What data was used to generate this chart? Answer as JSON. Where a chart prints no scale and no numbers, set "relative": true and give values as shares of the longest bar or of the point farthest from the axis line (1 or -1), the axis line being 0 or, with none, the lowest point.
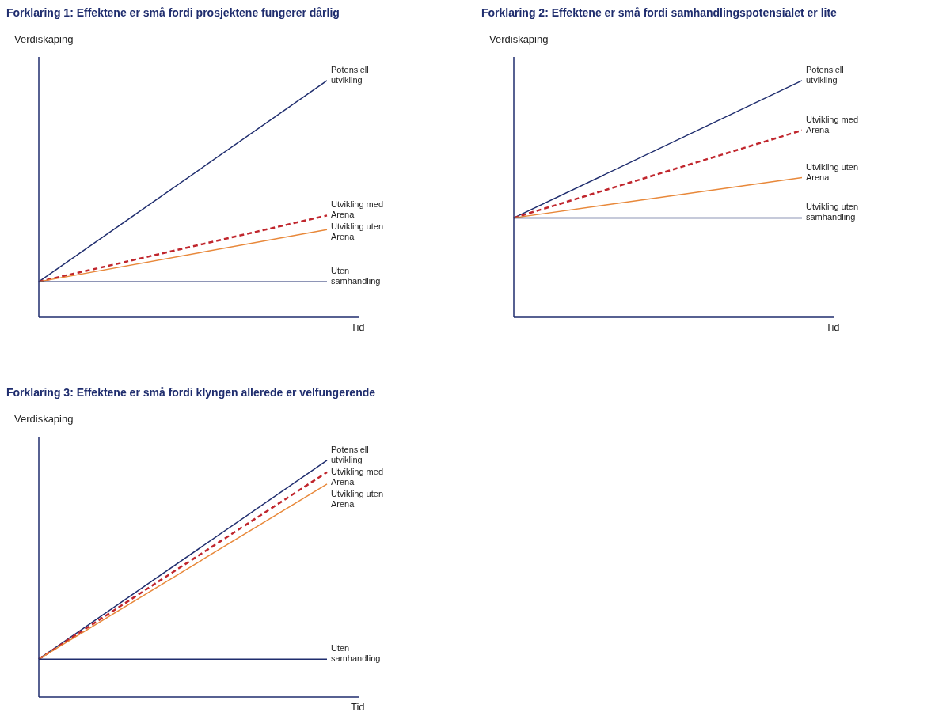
{
  "chart_data": [
    {
      "type": "line",
      "title": "Forklaring 1: Effektene er små fordi prosjektene fungerer dårlig",
      "xlabel": "Tid",
      "ylabel": "Verdiskaping",
      "relative": true,
      "categories": [
        null,
        null
      ],
      "series": [
        {
          "name": "Potensiell utvikling",
          "color": "#1f2d6e",
          "values": [
            0.15,
            1
          ]
        },
        {
          "name": "Utvikling med Arena",
          "color": "#c0262d",
          "values": [
            0.15,
            0.43
          ],
          "line_style": "dashed"
        },
        {
          "name": "Utvikling uten Arena",
          "color": "#e8883a",
          "values": [
            0.15,
            0.37
          ]
        },
        {
          "name": "Uten samhandling",
          "color": "#1f2d6e",
          "values": [
            0.15,
            0.15
          ]
        }
      ]
    },
    {
      "type": "line",
      "title": "Forklaring 2: Effektene er små fordi samhandlingspotensialet er lite",
      "xlabel": "Tid",
      "ylabel": "Verdiskaping",
      "relative": true,
      "categories": [
        null,
        null
      ],
      "series": [
        {
          "name": "Potensiell utvikling",
          "color": "#1f2d6e",
          "values": [
            0.42,
            1
          ]
        },
        {
          "name": "Utvikling med Arena",
          "color": "#c0262d",
          "values": [
            0.42,
            0.79
          ],
          "line_style": "dashed"
        },
        {
          "name": "Utvikling uten Arena",
          "color": "#e8883a",
          "values": [
            0.42,
            0.59
          ]
        },
        {
          "name": "Utvikling uten samhandling",
          "color": "#1f2d6e",
          "values": [
            0.42,
            0.42
          ]
        }
      ]
    },
    {
      "type": "line",
      "title": "Forklaring 3: Effektene er små fordi klyngen allerede er velfungerende",
      "xlabel": "Tid",
      "ylabel": "Verdiskaping",
      "relative": true,
      "categories": [
        null,
        null
      ],
      "series": [
        {
          "name": "Potensiell utvikling",
          "color": "#1f2d6e",
          "values": [
            0.16,
            1
          ]
        },
        {
          "name": "Utvikling med Arena",
          "color": "#c0262d",
          "values": [
            0.16,
            0.95
          ],
          "line_style": "dashed"
        },
        {
          "name": "Utvikling uten Arena",
          "color": "#e8883a",
          "values": [
            0.16,
            0.9
          ]
        },
        {
          "name": "Uten samhandling",
          "color": "#1f2d6e",
          "values": [
            0.16,
            0.16
          ]
        }
      ]
    }
  ]
}
